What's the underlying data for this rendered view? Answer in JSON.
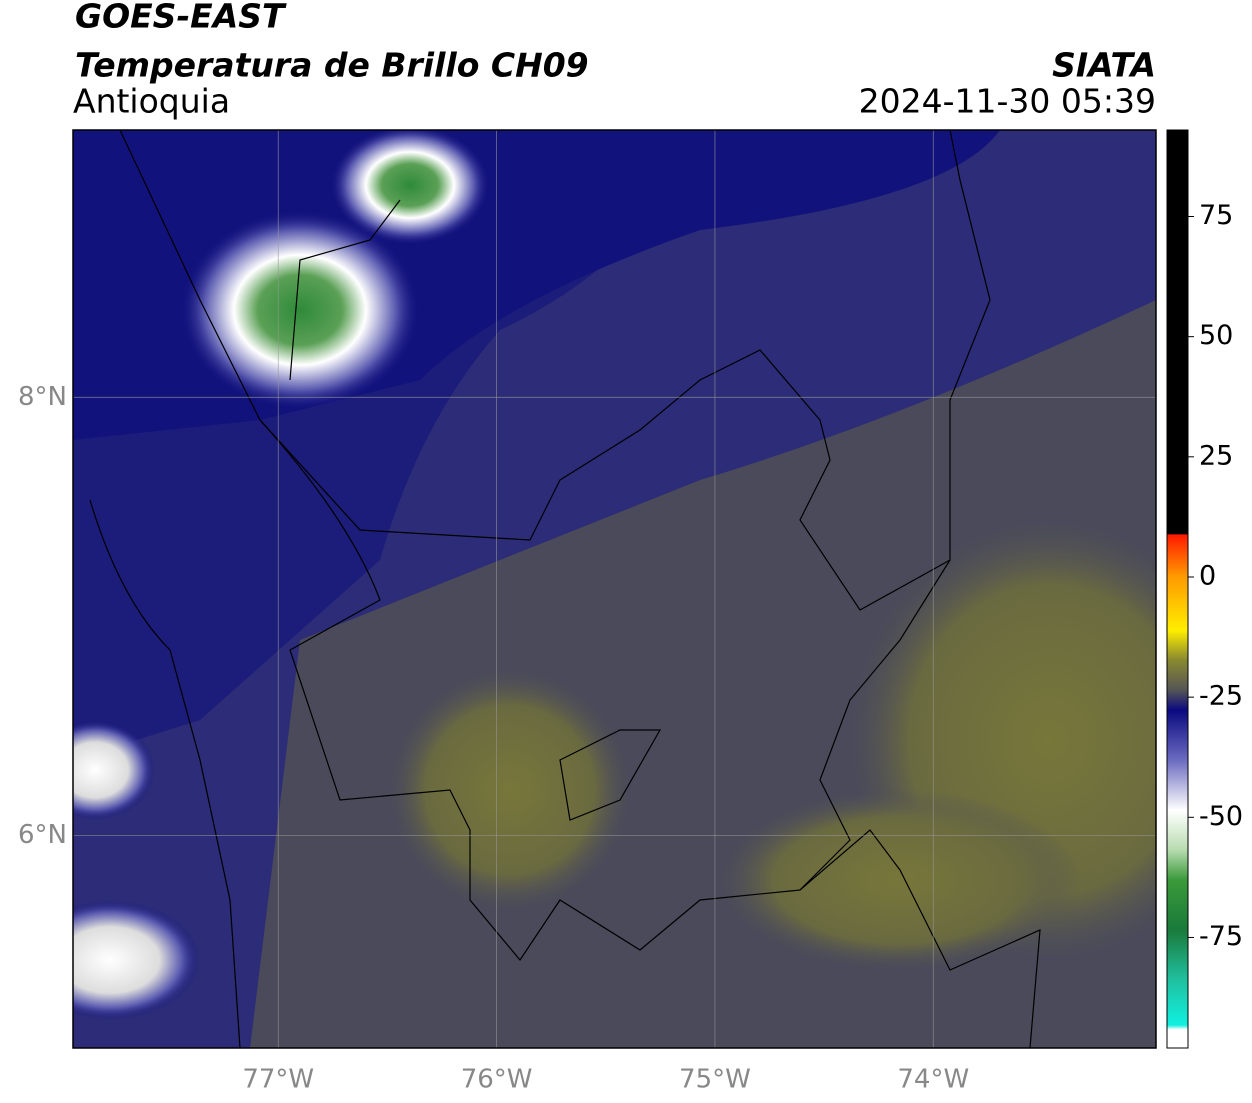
{
  "header": {
    "title": "GOES-EAST",
    "subtitle": "Temperatura de Brillo CH09",
    "region": "Antioquia",
    "source": "SIATA",
    "timestamp": "2024-11-30 05:39"
  },
  "map": {
    "xlim": [
      -77.94,
      -72.98
    ],
    "ylim": [
      5.03,
      9.22
    ],
    "xticks": [
      {
        "value": -77,
        "label": "77°W"
      },
      {
        "value": -76,
        "label": "76°W"
      },
      {
        "value": -75,
        "label": "75°W"
      },
      {
        "value": -74,
        "label": "74°W"
      }
    ],
    "yticks": [
      {
        "value": 6,
        "label": "6°N"
      },
      {
        "value": 8,
        "label": "8°N"
      }
    ],
    "grid": true
  },
  "colorbar": {
    "lim": [
      -98,
      93
    ],
    "ticks": [
      75,
      50,
      25,
      0,
      -25,
      -50,
      -75
    ]
  }
}
